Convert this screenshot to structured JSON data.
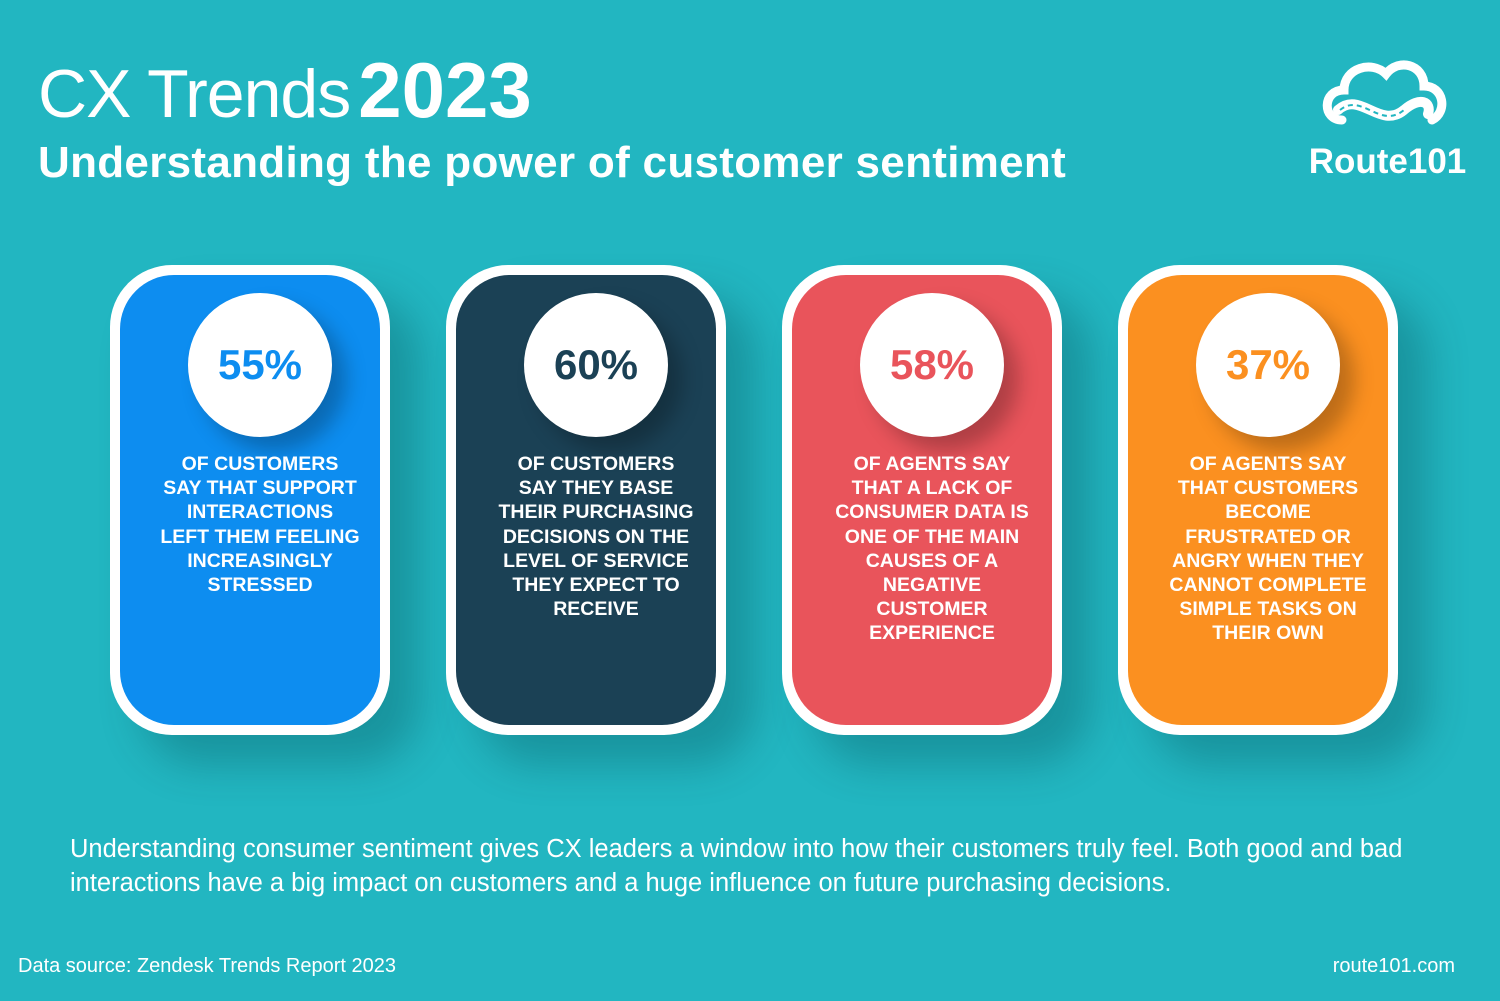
{
  "header": {
    "title_light": "CX Trends",
    "title_bold": "2023",
    "subtitle": "Understanding the power of customer sentiment"
  },
  "brand": {
    "name": "Route101"
  },
  "cards": [
    {
      "stat": "55%",
      "text": "OF CUSTOMERS SAY THAT SUPPORT INTERACTIONS LEFT THEM FEELING INCREASINGLY STRESSED"
    },
    {
      "stat": "60%",
      "text": "OF CUSTOMERS SAY THEY BASE THEIR PURCHASING DECISIONS ON THE LEVEL OF SERVICE THEY EXPECT TO RECEIVE"
    },
    {
      "stat": "58%",
      "text": "OF AGENTS SAY THAT A LACK OF CONSUMER DATA IS ONE OF THE MAIN CAUSES OF A NEGATIVE CUSTOMER EXPERIENCE"
    },
    {
      "stat": "37%",
      "text": "OF AGENTS SAY THAT CUSTOMERS BECOME FRUSTRATED OR ANGRY WHEN THEY CANNOT COMPLETE SIMPLE TASKS ON THEIR OWN"
    }
  ],
  "footer": {
    "description": "Understanding consumer sentiment gives CX leaders a window into how their customers truly feel. Both good and bad interactions have a big impact on customers and a huge influence on future purchasing decisions.",
    "source": "Data source: Zendesk Trends Report 2023",
    "website": "route101.com"
  }
}
